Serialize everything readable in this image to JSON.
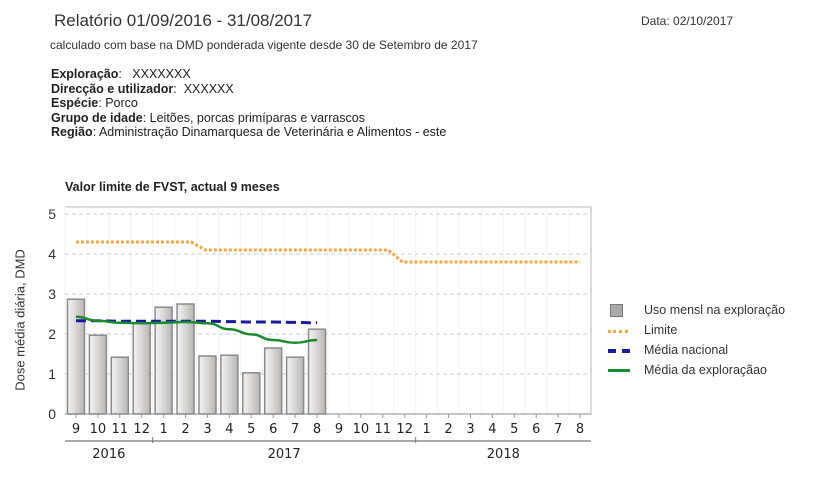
{
  "header": {
    "title": "Relatório 01/09/2016 - 31/08/2017",
    "date": "Data: 02/10/2017",
    "subtitle": "calculado com base na DMD ponderada vigente desde 30 de Setembro de 2017"
  },
  "info": [
    {
      "label": "Exploração",
      "value": "XXXXXXX"
    },
    {
      "label": "Direcção e utilizador",
      "value": "XXXXXX"
    },
    {
      "label": "Espécie",
      "value": "Porco"
    },
    {
      "label": "Grupo de idade",
      "value": "Leitões, porcas primíparas e varrascos"
    },
    {
      "label": "Região",
      "value": "Administração Dinamarquesa de Veterinária e Alimentos - este"
    }
  ],
  "colors": {
    "bar_fill": "#d9d6d6",
    "bar_stroke": "#8a8a8a",
    "limit": "#f5a742",
    "national": "#1a1aa0",
    "farm": "#1a8a2e",
    "grid": "#cccccc"
  },
  "chart_data": {
    "type": "bar",
    "title": "Valor limite de FVST, actual 9 meses",
    "xlabel": "",
    "ylabel": "Dose média diária, DMD",
    "ylim": [
      0,
      5
    ],
    "yticks": [
      0,
      1,
      2,
      3,
      4,
      5
    ],
    "grid": true,
    "legend_position": "right",
    "categories": [
      "9",
      "10",
      "11",
      "12",
      "1",
      "2",
      "3",
      "4",
      "5",
      "6",
      "7",
      "8",
      "9",
      "10",
      "11",
      "12",
      "1",
      "2",
      "3",
      "4",
      "5",
      "6",
      "7",
      "8"
    ],
    "year_groups": [
      {
        "label": "2016",
        "start": 0,
        "end": 3
      },
      {
        "label": "2017",
        "start": 4,
        "end": 15
      },
      {
        "label": "2018",
        "start": 16,
        "end": 23
      }
    ],
    "series": [
      {
        "name": "Uso mensl na exploração",
        "type": "bar",
        "values": [
          2.87,
          1.97,
          1.42,
          2.27,
          2.67,
          2.75,
          1.45,
          1.47,
          1.03,
          1.65,
          1.42,
          2.12,
          null,
          null,
          null,
          null,
          null,
          null,
          null,
          null,
          null,
          null,
          null,
          null
        ]
      },
      {
        "name": "Limite",
        "type": "line",
        "style": "dotted",
        "values": [
          4.3,
          4.3,
          4.3,
          4.3,
          4.3,
          4.3,
          4.1,
          4.1,
          4.1,
          4.1,
          4.1,
          4.1,
          4.1,
          4.1,
          4.1,
          3.8,
          3.8,
          3.8,
          3.8,
          3.8,
          3.8,
          3.8,
          3.8,
          3.8
        ]
      },
      {
        "name": "Média nacional",
        "type": "line",
        "style": "dashed",
        "values": [
          2.33,
          2.33,
          2.32,
          2.32,
          2.32,
          2.32,
          2.32,
          2.31,
          2.3,
          2.3,
          2.29,
          2.28,
          null,
          null,
          null,
          null,
          null,
          null,
          null,
          null,
          null,
          null,
          null,
          null
        ]
      },
      {
        "name": "Média da exploraçãao",
        "type": "line",
        "style": "solid",
        "values": [
          2.43,
          2.33,
          2.28,
          2.27,
          2.28,
          2.3,
          2.27,
          2.12,
          1.99,
          1.85,
          1.78,
          1.85,
          null,
          null,
          null,
          null,
          null,
          null,
          null,
          null,
          null,
          null,
          null,
          null
        ]
      }
    ]
  }
}
